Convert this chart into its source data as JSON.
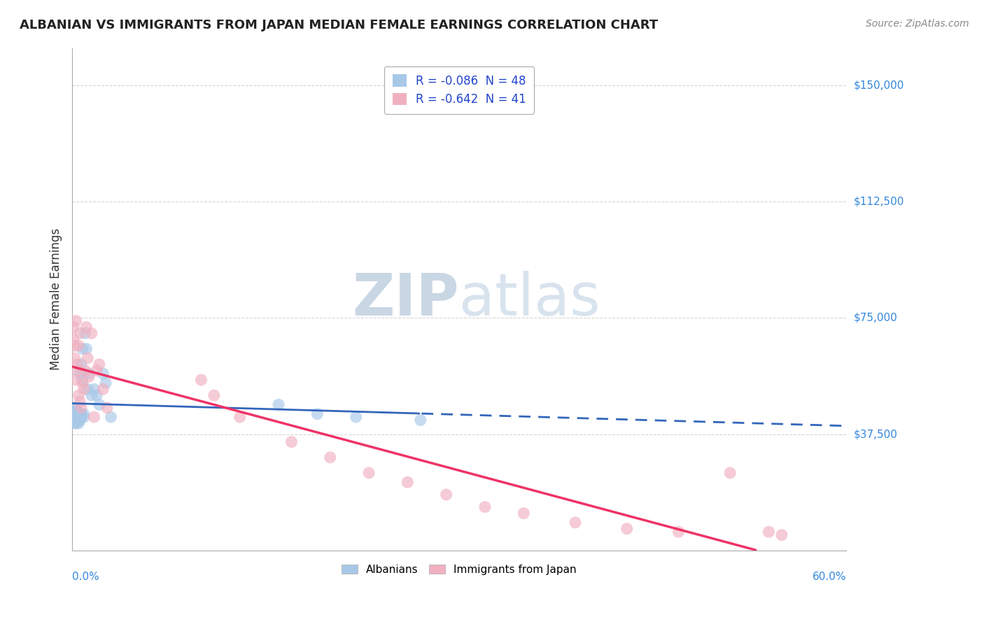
{
  "title": "ALBANIAN VS IMMIGRANTS FROM JAPAN MEDIAN FEMALE EARNINGS CORRELATION CHART",
  "source": "Source: ZipAtlas.com",
  "ylabel": "Median Female Earnings",
  "y_ticks": [
    37500,
    75000,
    112500,
    150000
  ],
  "y_tick_labels": [
    "$37,500",
    "$75,000",
    "$112,500",
    "$150,000"
  ],
  "x_min": 0.0,
  "x_max": 0.6,
  "y_min": 0,
  "y_max": 162000,
  "albanians_R": -0.086,
  "albanians_N": 48,
  "japan_R": -0.642,
  "japan_N": 41,
  "blue_color": "#a8c8e8",
  "pink_color": "#f0b0c0",
  "blue_line_color": "#3366bb",
  "pink_line_color": "#ee3366",
  "watermark_color": "#d0dff0",
  "background_color": "#ffffff",
  "grid_color": "#cccccc",
  "albanians_x": [
    0.001,
    0.001,
    0.001,
    0.001,
    0.002,
    0.002,
    0.002,
    0.002,
    0.002,
    0.003,
    0.003,
    0.003,
    0.003,
    0.003,
    0.004,
    0.004,
    0.004,
    0.004,
    0.005,
    0.005,
    0.005,
    0.005,
    0.006,
    0.006,
    0.006,
    0.006,
    0.007,
    0.007,
    0.007,
    0.008,
    0.008,
    0.009,
    0.009,
    0.01,
    0.011,
    0.012,
    0.013,
    0.015,
    0.017,
    0.019,
    0.021,
    0.024,
    0.026,
    0.03,
    0.16,
    0.19,
    0.22,
    0.27
  ],
  "albanians_y": [
    44000,
    43000,
    42000,
    45000,
    44000,
    43000,
    42000,
    46000,
    41000,
    44000,
    43000,
    42000,
    45000,
    41000,
    44000,
    43000,
    42000,
    45000,
    44000,
    43000,
    42000,
    41000,
    57000,
    44000,
    43000,
    42000,
    60000,
    44000,
    43000,
    65000,
    55000,
    44000,
    43000,
    70000,
    65000,
    52000,
    57000,
    50000,
    52000,
    50000,
    47000,
    57000,
    54000,
    43000,
    47000,
    44000,
    43000,
    42000
  ],
  "japan_x": [
    0.001,
    0.001,
    0.002,
    0.002,
    0.003,
    0.003,
    0.004,
    0.004,
    0.005,
    0.005,
    0.006,
    0.006,
    0.007,
    0.008,
    0.009,
    0.01,
    0.011,
    0.012,
    0.013,
    0.015,
    0.017,
    0.019,
    0.021,
    0.024,
    0.027,
    0.1,
    0.11,
    0.13,
    0.17,
    0.2,
    0.23,
    0.26,
    0.29,
    0.32,
    0.35,
    0.39,
    0.43,
    0.47,
    0.51,
    0.54,
    0.55
  ],
  "japan_y": [
    68000,
    72000,
    62000,
    66000,
    55000,
    74000,
    60000,
    58000,
    50000,
    66000,
    48000,
    70000,
    46000,
    54000,
    52000,
    58000,
    72000,
    62000,
    56000,
    70000,
    43000,
    58000,
    60000,
    52000,
    46000,
    55000,
    50000,
    43000,
    35000,
    30000,
    25000,
    22000,
    18000,
    14000,
    12000,
    9000,
    7000,
    6000,
    25000,
    6000,
    5000
  ]
}
